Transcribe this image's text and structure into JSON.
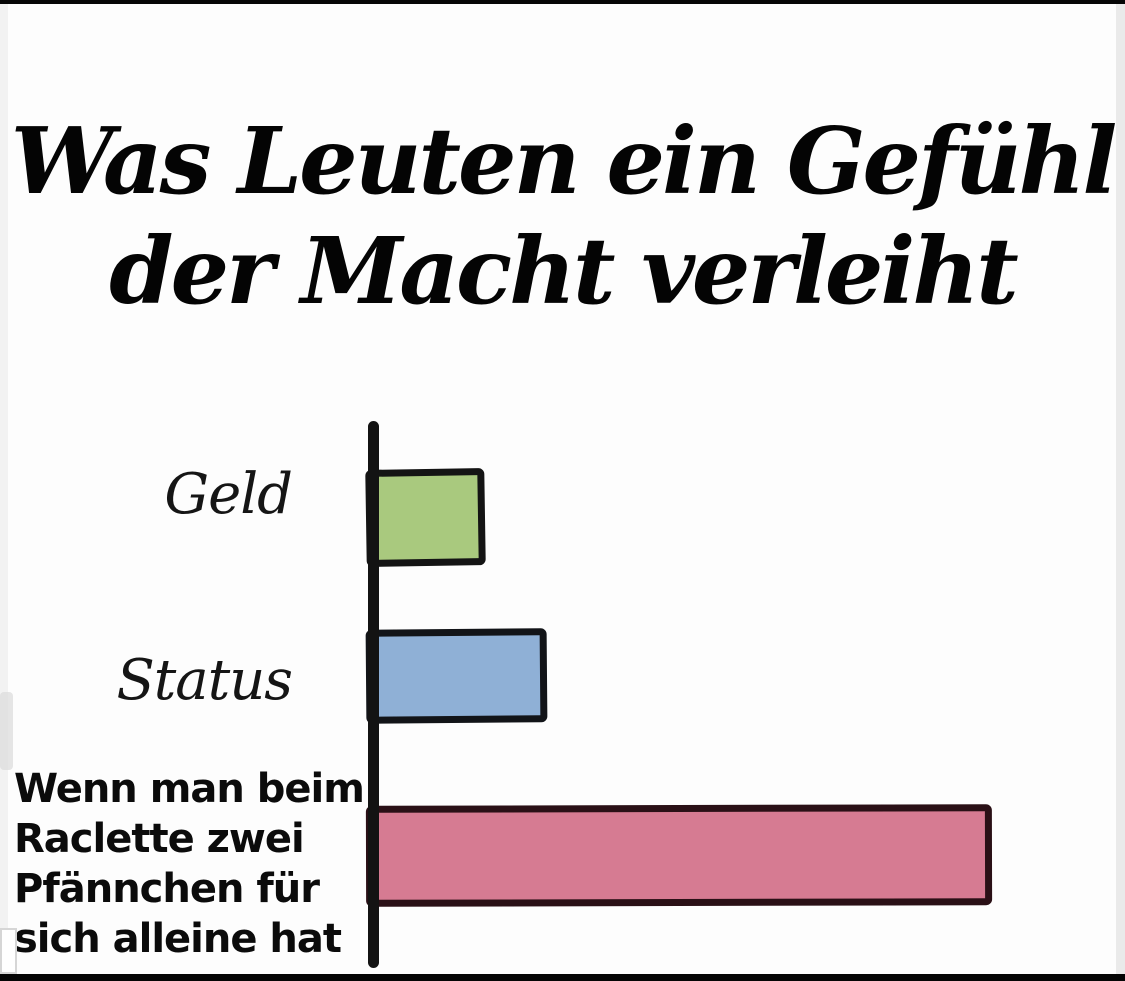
{
  "title": {
    "line1": "Was Leuten ein Gefühl",
    "line2": "der Macht verleiht",
    "full": "Was Leuten ein Gefühl der Macht verleiht"
  },
  "chart_data": {
    "type": "bar",
    "orientation": "horizontal",
    "title": "Was Leuten ein Gefühl der Macht verleiht",
    "categories": [
      "Geld",
      "Status",
      "Wenn man beim Raclette zwei Pfännchen für sich alleine hat"
    ],
    "values": [
      18,
      28,
      100
    ],
    "value_scale": "percent of longest bar (no numeric axis or tick labels shown)",
    "bar_colors": [
      "#a9c97e",
      "#8fb0d6",
      "#d67b92"
    ],
    "bar_outline_colors": [
      "#141414",
      "#121418",
      "#2a1016"
    ],
    "axis_color": "#131313",
    "gridlines": false,
    "legend": false,
    "xlabel": "",
    "ylabel": "",
    "style": "hand-drawn meme chart, black outlines"
  },
  "category_labels": {
    "geld": "Geld",
    "status": "Status",
    "raclette_lines": [
      "Wenn man beim",
      "Raclette zwei",
      "Pfännchen für",
      "sich alleine hat"
    ]
  }
}
